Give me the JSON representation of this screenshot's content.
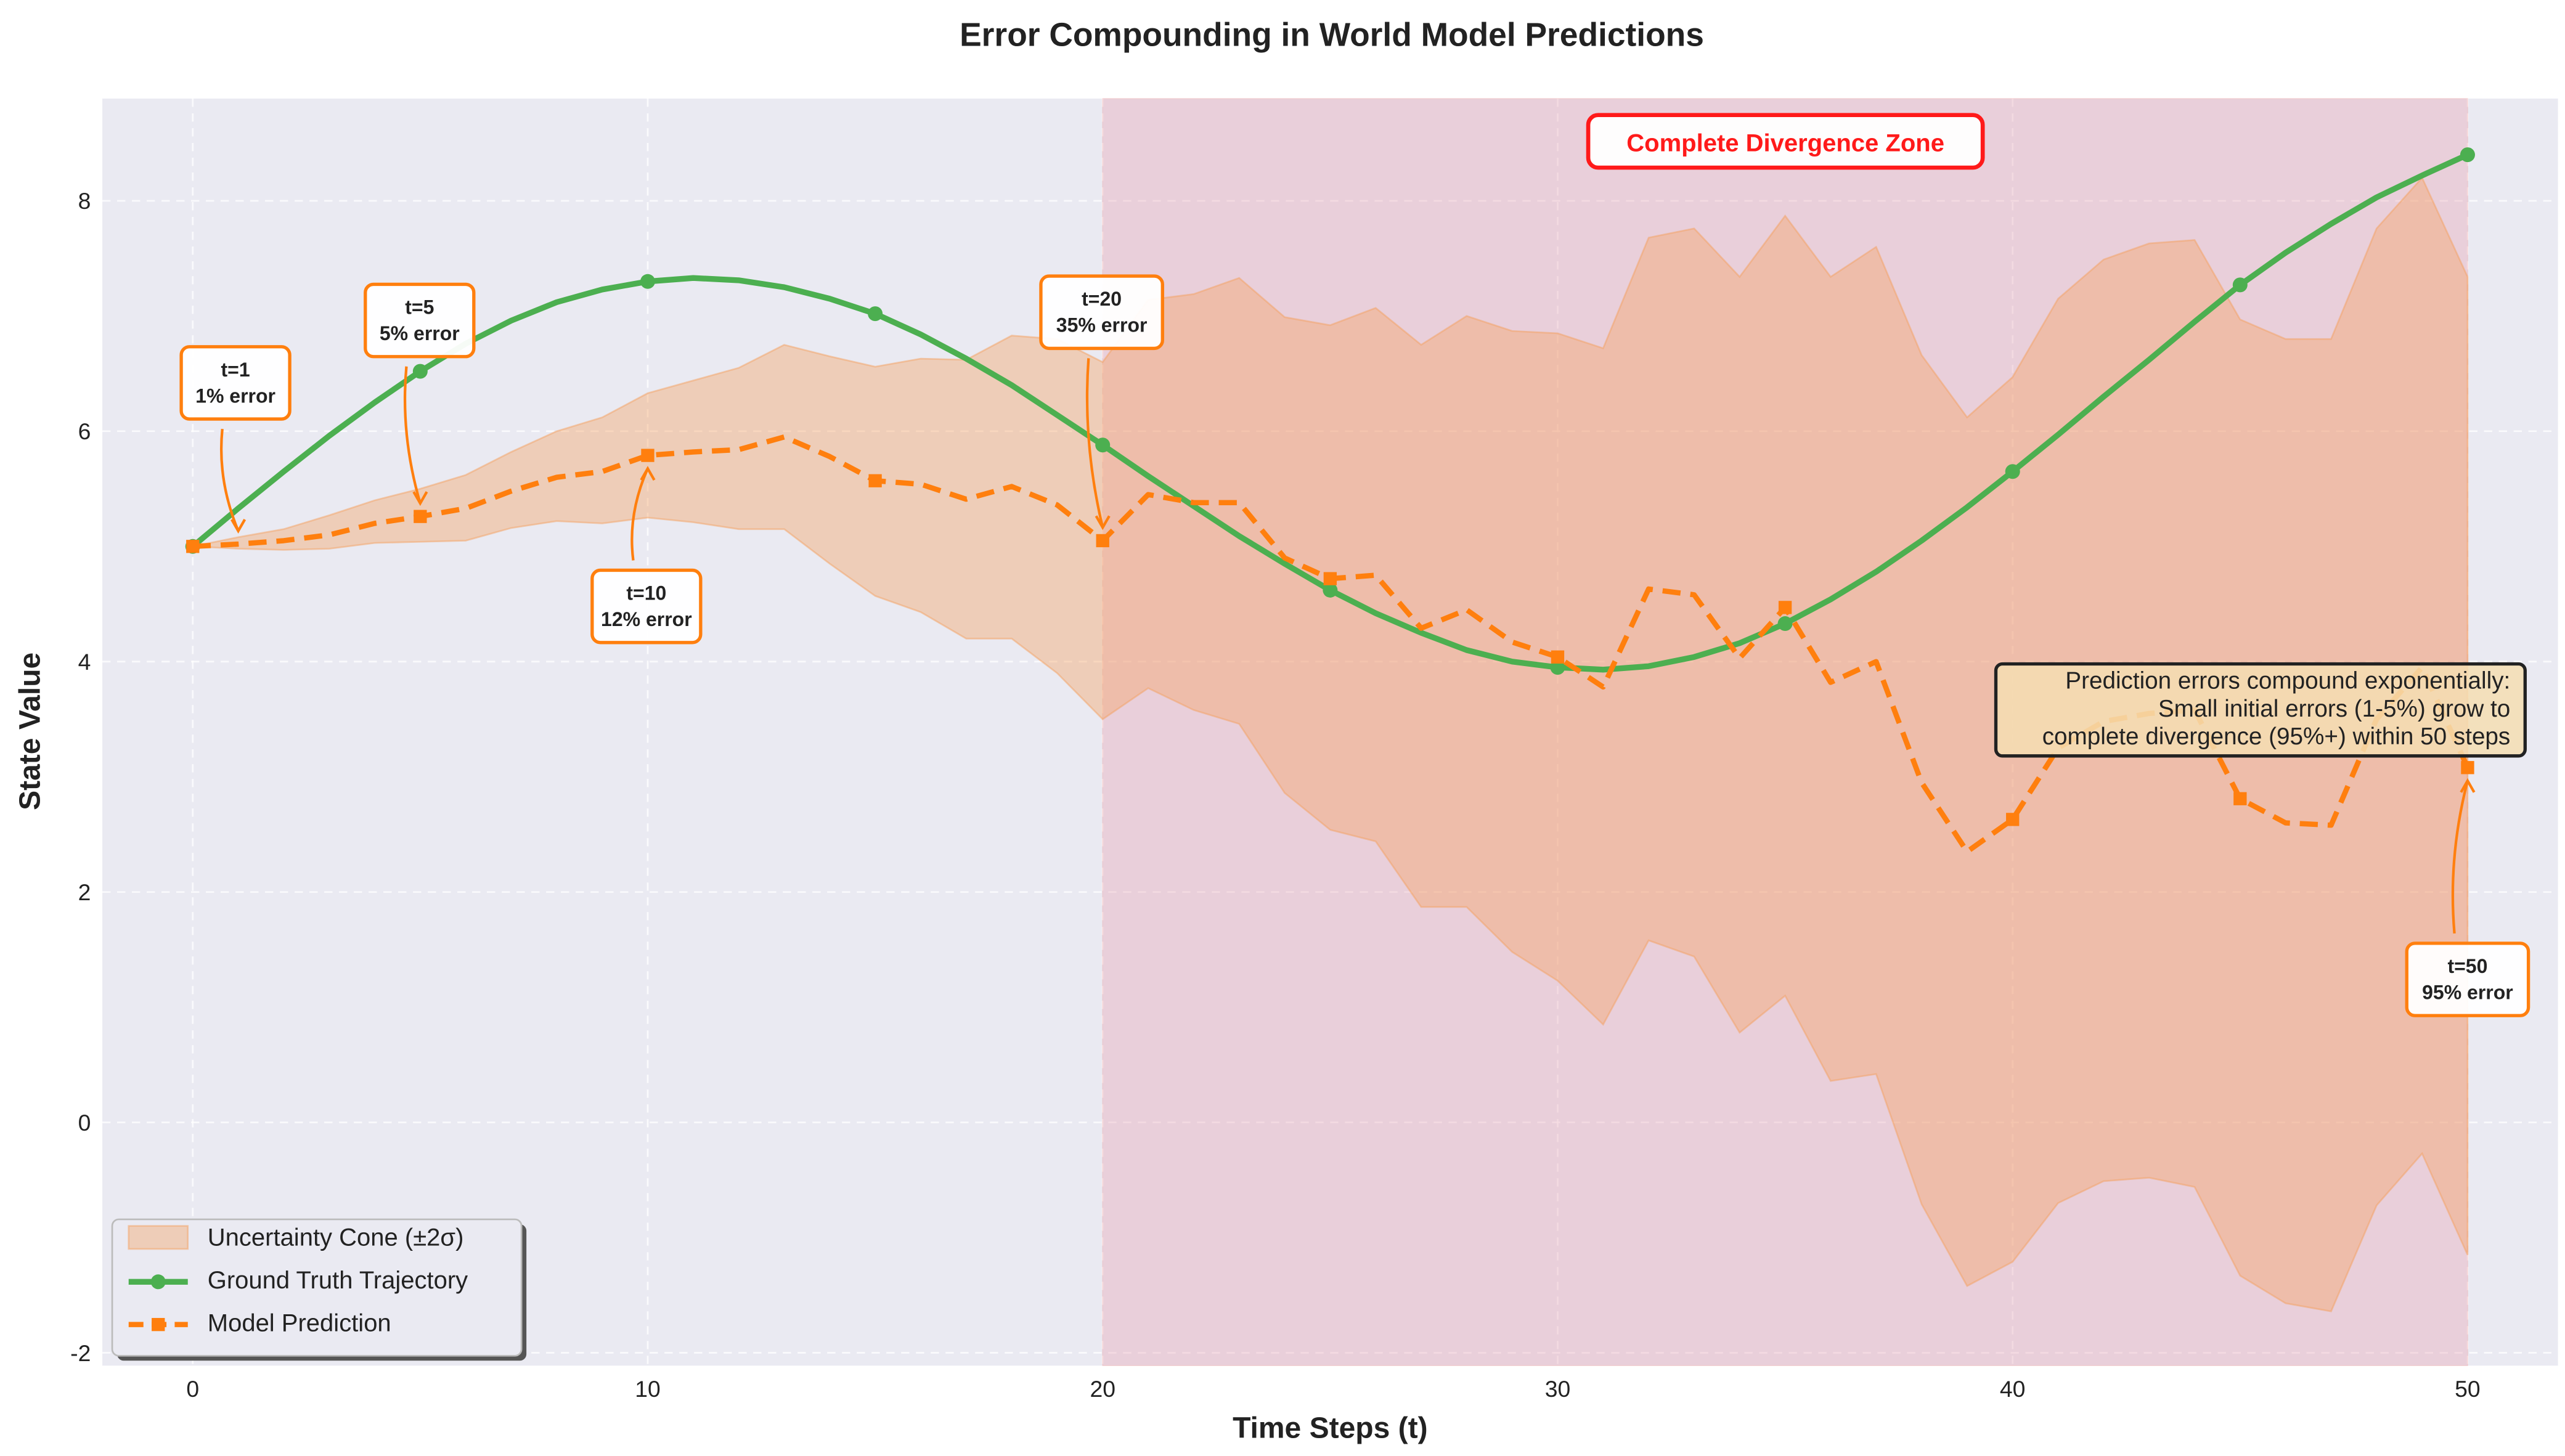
{
  "chart_data": {
    "type": "line",
    "title": "Error Compounding in World Model Predictions",
    "xlabel": "Time Steps (t)",
    "ylabel": "State Value",
    "xlim": [
      -2,
      52
    ],
    "ylim": [
      -2.1,
      8.9
    ],
    "xticks": [
      0,
      10,
      20,
      30,
      40,
      50
    ],
    "yticks": [
      -2,
      0,
      2,
      4,
      6,
      8
    ],
    "grid": true,
    "legend_position": "bottom-left",
    "x": [
      0,
      1,
      2,
      3,
      4,
      5,
      6,
      7,
      8,
      9,
      10,
      11,
      12,
      13,
      14,
      15,
      16,
      17,
      18,
      19,
      20,
      21,
      22,
      23,
      24,
      25,
      26,
      27,
      28,
      29,
      30,
      31,
      32,
      33,
      34,
      35,
      36,
      37,
      38,
      39,
      40,
      41,
      42,
      43,
      44,
      45,
      46,
      47,
      48,
      49,
      50
    ],
    "series": [
      {
        "name": "Uncertainty Cone (±2σ)",
        "kind": "band",
        "color": "#f4a261",
        "upper": [
          5.0,
          5.08,
          5.15,
          5.27,
          5.4,
          5.5,
          5.62,
          5.82,
          6.0,
          6.12,
          6.33,
          6.44,
          6.55,
          6.75,
          6.65,
          6.56,
          6.63,
          6.62,
          6.83,
          6.8,
          6.6,
          7.14,
          7.19,
          7.33,
          6.99,
          6.92,
          7.07,
          6.75,
          7.0,
          6.87,
          6.85,
          6.72,
          7.68,
          7.76,
          7.34,
          7.87,
          7.34,
          7.6,
          6.66,
          6.12,
          6.47,
          7.15,
          7.49,
          7.63,
          7.66,
          6.97,
          6.8,
          6.8,
          7.76,
          8.2,
          7.34
        ],
        "lower": [
          5.0,
          4.98,
          4.97,
          4.98,
          5.03,
          5.04,
          5.05,
          5.16,
          5.22,
          5.2,
          5.25,
          5.21,
          5.15,
          5.15,
          4.85,
          4.57,
          4.43,
          4.2,
          4.2,
          3.9,
          3.5,
          3.77,
          3.58,
          3.46,
          2.86,
          2.54,
          2.44,
          1.87,
          1.87,
          1.48,
          1.23,
          0.85,
          1.58,
          1.44,
          0.78,
          1.1,
          0.36,
          0.42,
          -0.71,
          -1.42,
          -1.21,
          -0.7,
          -0.51,
          -0.48,
          -0.56,
          -1.33,
          -1.57,
          -1.64,
          -0.72,
          -0.27,
          -1.15
        ]
      },
      {
        "name": "Ground Truth Trajectory",
        "kind": "line",
        "color": "#4caf50",
        "marker": "circle",
        "marker_every": 5,
        "values": [
          5.0,
          5.33,
          5.65,
          5.96,
          6.25,
          6.52,
          6.76,
          6.96,
          7.12,
          7.23,
          7.3,
          7.33,
          7.31,
          7.25,
          7.15,
          7.02,
          6.84,
          6.63,
          6.4,
          6.14,
          5.88,
          5.61,
          5.35,
          5.09,
          4.85,
          4.62,
          4.42,
          4.25,
          4.1,
          4.0,
          3.95,
          3.93,
          3.96,
          4.04,
          4.16,
          4.33,
          4.54,
          4.78,
          5.05,
          5.34,
          5.65,
          5.97,
          6.3,
          6.62,
          6.95,
          7.27,
          7.55,
          7.8,
          8.03,
          8.22,
          8.4
        ]
      },
      {
        "name": "Model Prediction",
        "kind": "line",
        "dashed": true,
        "color": "#ff7f0e",
        "marker": "square",
        "marker_every": 5,
        "values": [
          5.0,
          5.02,
          5.05,
          5.1,
          5.2,
          5.26,
          5.33,
          5.48,
          5.6,
          5.65,
          5.79,
          5.82,
          5.84,
          5.95,
          5.78,
          5.57,
          5.54,
          5.41,
          5.52,
          5.36,
          5.05,
          5.45,
          5.38,
          5.38,
          4.9,
          4.72,
          4.75,
          4.29,
          4.45,
          4.17,
          4.04,
          3.78,
          4.63,
          4.58,
          4.03,
          4.47,
          3.82,
          4.0,
          2.95,
          2.35,
          2.63,
          3.25,
          3.48,
          3.55,
          3.58,
          2.81,
          2.6,
          2.58,
          3.5,
          3.95,
          3.08
        ]
      }
    ],
    "shaded_region": {
      "x_start": 20,
      "x_end": 50,
      "label": "Complete Divergence Zone",
      "color": "#e8a0b0"
    },
    "annotations": [
      {
        "t": 1,
        "line1": "t=1",
        "line2": "1% error"
      },
      {
        "t": 5,
        "line1": "t=5",
        "line2": "5% error"
      },
      {
        "t": 10,
        "line1": "t=10",
        "line2": "12% error"
      },
      {
        "t": 20,
        "line1": "t=20",
        "line2": "35% error"
      },
      {
        "t": 50,
        "line1": "t=50",
        "line2": "95% error"
      }
    ],
    "note_lines": [
      "Prediction errors compound exponentially:",
      "Small initial errors (1-5%) grow to",
      "complete divergence (95%+) within 50 steps"
    ]
  }
}
